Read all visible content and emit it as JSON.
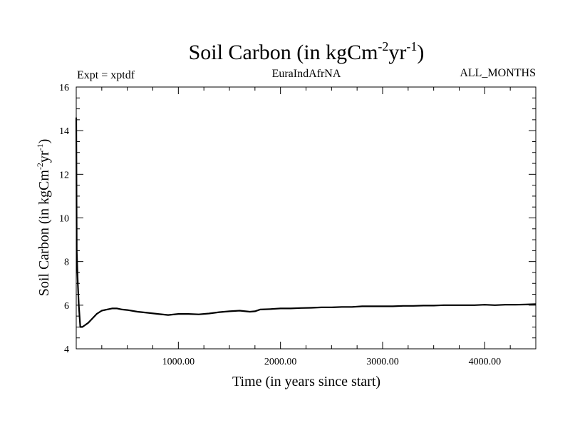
{
  "chart_data": {
    "type": "line",
    "title": {
      "prefix": "Soil Carbon (in kgCm",
      "sup1": "-2",
      "mid": "yr",
      "sup2": "-1",
      "suffix": ")"
    },
    "subtitle_left": "Expt = xptdf",
    "subtitle_center": "EuraIndAfrNA",
    "subtitle_right": "ALL_MONTHS",
    "xlabel": "Time (in years since start)",
    "ylabel": {
      "prefix": "Soil Carbon (in kgCm",
      "sup1": "-2",
      "mid": "yr",
      "sup2": "-1",
      "suffix": ")"
    },
    "xlim": [
      0,
      4500
    ],
    "ylim": [
      4,
      16
    ],
    "x_ticks": [
      {
        "value": 1000,
        "label": "1000.00"
      },
      {
        "value": 2000,
        "label": "2000.00"
      },
      {
        "value": 3000,
        "label": "3000.00"
      },
      {
        "value": 4000,
        "label": "4000.00"
      }
    ],
    "y_ticks": [
      {
        "value": 4,
        "label": "4"
      },
      {
        "value": 6,
        "label": "6"
      },
      {
        "value": 8,
        "label": "8"
      },
      {
        "value": 10,
        "label": "10"
      },
      {
        "value": 12,
        "label": "12"
      },
      {
        "value": 14,
        "label": "14"
      },
      {
        "value": 16,
        "label": "16"
      }
    ],
    "x_minor_step": 250,
    "y_minor_step": 0.5,
    "grid": false,
    "line_color": "#000000",
    "series": [
      {
        "x": [
          0,
          5,
          15,
          25,
          40,
          60,
          90,
          120,
          160,
          200,
          250,
          300,
          350,
          400,
          450,
          500,
          600,
          700,
          800,
          900,
          1000,
          1100,
          1200,
          1300,
          1400,
          1500,
          1600,
          1700,
          1750,
          1800,
          1900,
          2000,
          2100,
          2200,
          2300,
          2400,
          2500,
          2600,
          2700,
          2800,
          2900,
          3000,
          3100,
          3200,
          3300,
          3400,
          3500,
          3600,
          3700,
          3800,
          3900,
          4000,
          4100,
          4200,
          4300,
          4400,
          4500
        ],
        "y": [
          14.6,
          8.5,
          7.0,
          6.0,
          5.0,
          5.0,
          5.1,
          5.2,
          5.4,
          5.6,
          5.75,
          5.8,
          5.85,
          5.85,
          5.8,
          5.78,
          5.7,
          5.65,
          5.6,
          5.55,
          5.6,
          5.6,
          5.58,
          5.62,
          5.68,
          5.72,
          5.75,
          5.7,
          5.72,
          5.8,
          5.82,
          5.85,
          5.85,
          5.87,
          5.88,
          5.9,
          5.9,
          5.92,
          5.92,
          5.95,
          5.95,
          5.95,
          5.95,
          5.97,
          5.97,
          5.98,
          5.98,
          6.0,
          6.0,
          6.0,
          6.0,
          6.02,
          6.0,
          6.02,
          6.02,
          6.03,
          6.05
        ]
      }
    ]
  }
}
